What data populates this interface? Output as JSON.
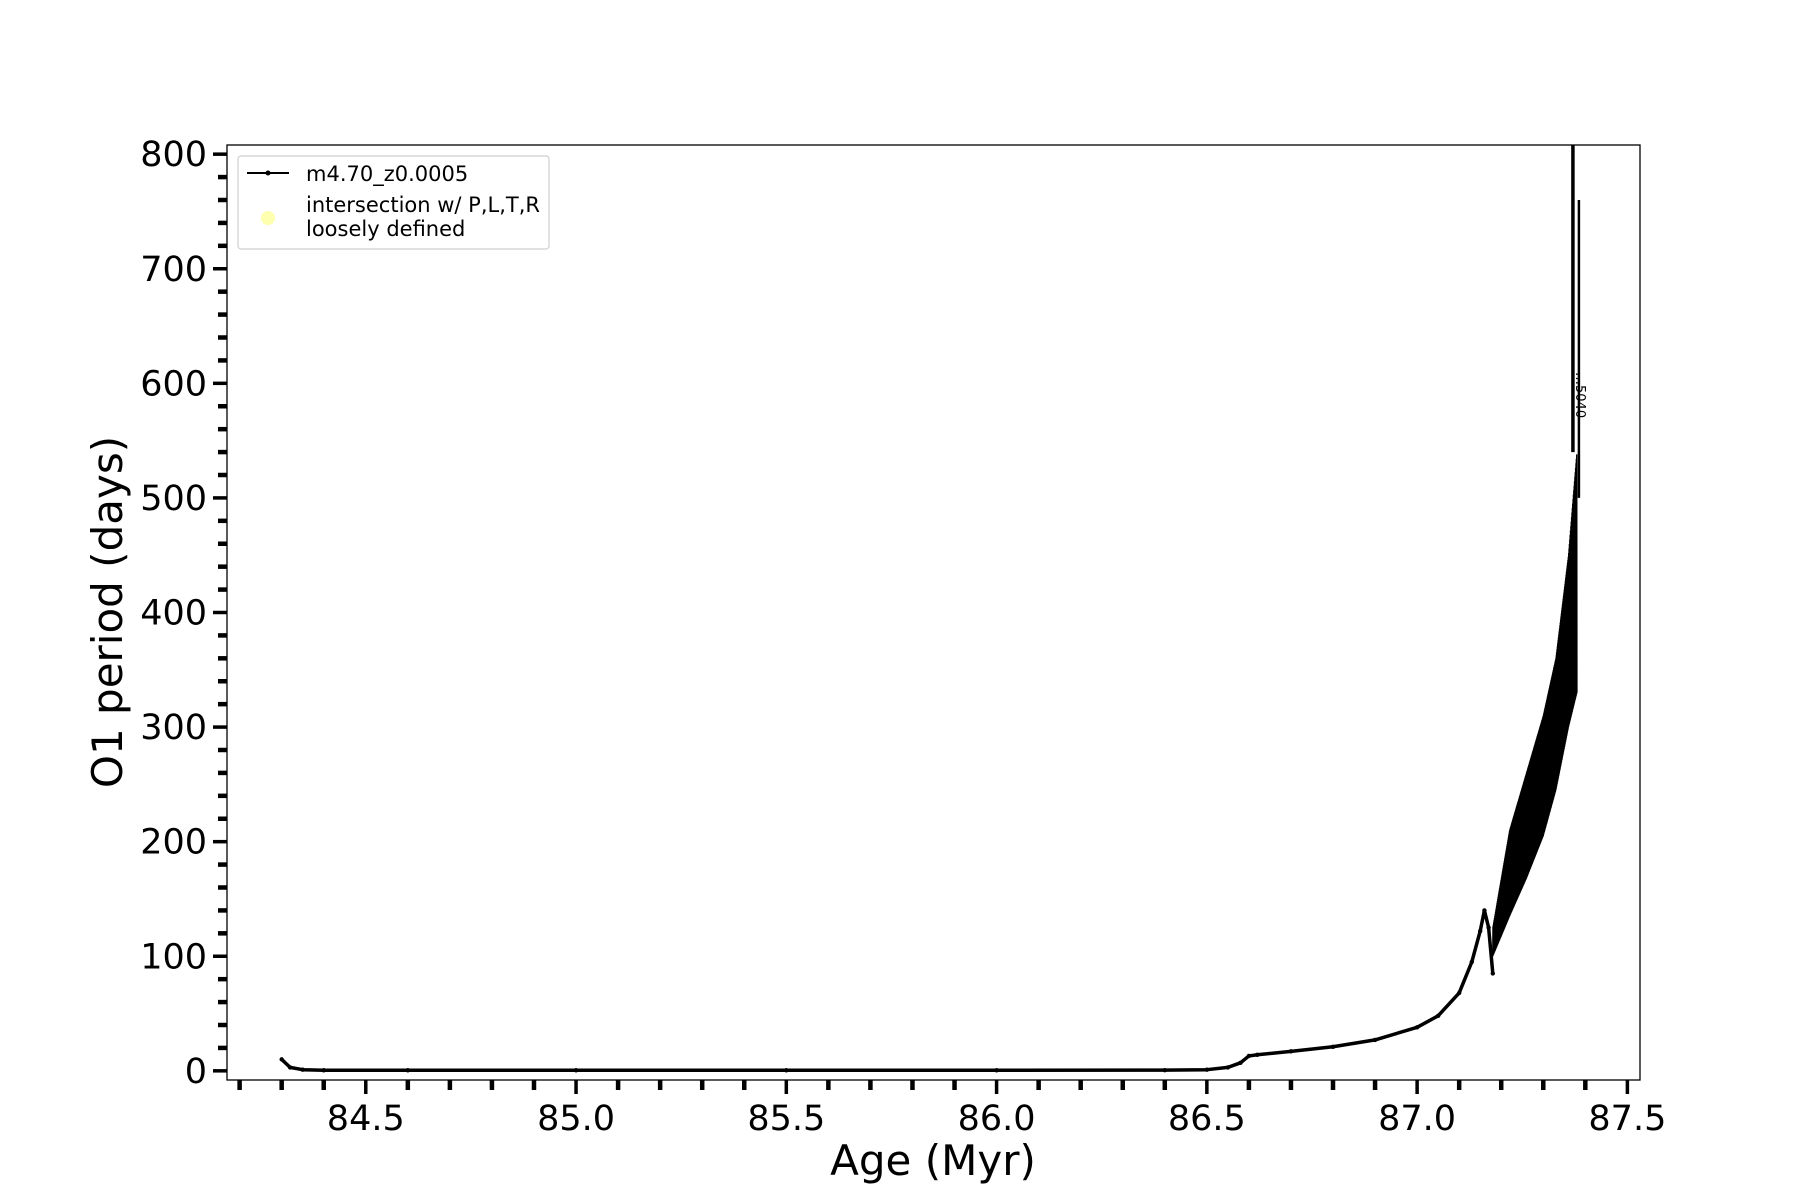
{
  "chart_data": {
    "type": "line",
    "title": "",
    "xlabel": "Age (Myr)",
    "ylabel": "O1 period (days)",
    "xlim": [
      84.17,
      87.53
    ],
    "ylim": [
      -8,
      808
    ],
    "x_ticks": [
      84.5,
      85.0,
      85.5,
      86.0,
      86.5,
      87.0,
      87.5
    ],
    "x_tick_labels": [
      "84.5",
      "85.0",
      "85.5",
      "86.0",
      "86.5",
      "87.0",
      "87.5"
    ],
    "x_minor_step": 0.1,
    "y_ticks": [
      0,
      100,
      200,
      300,
      400,
      500,
      600,
      700,
      800
    ],
    "y_tick_labels": [
      "0",
      "100",
      "200",
      "300",
      "400",
      "500",
      "600",
      "700",
      "800"
    ],
    "y_minor_step": 20,
    "grid": false,
    "legend": {
      "position": "top-left",
      "entries": [
        {
          "label": "m4.70_z0.0005",
          "color": "#000000",
          "marker": "line-dot"
        },
        {
          "label": "intersection w/ P,L,T,R",
          "label_line2": "loosely defined",
          "color": "#ffffb0",
          "marker": "circle"
        }
      ]
    },
    "series": [
      {
        "name": "m4.70_z0.0005",
        "color": "#000000",
        "x": [
          84.3,
          84.32,
          84.35,
          84.4,
          84.6,
          85.0,
          85.5,
          86.0,
          86.4,
          86.5,
          86.55,
          86.58,
          86.6,
          86.62,
          86.7,
          86.8,
          86.9,
          87.0,
          87.05,
          87.1,
          87.13,
          87.15,
          87.16,
          87.17,
          87.18
        ],
        "y": [
          10,
          3,
          1,
          0.5,
          0.5,
          0.5,
          0.5,
          0.5,
          0.6,
          1,
          3,
          7,
          13,
          14,
          17,
          21,
          27,
          38,
          48,
          68,
          95,
          122,
          140,
          125,
          85
        ]
      }
    ],
    "oscillation_band": {
      "x": [
        87.18,
        87.22,
        87.26,
        87.3,
        87.33,
        87.36,
        87.38
      ],
      "y_low": [
        100,
        135,
        168,
        205,
        245,
        300,
        330
      ],
      "y_high": [
        125,
        210,
        260,
        310,
        360,
        450,
        540
      ]
    },
    "spike": {
      "x": 87.38,
      "y_top": 808,
      "y_tail": 760
    },
    "annotations": [
      "…5040"
    ]
  }
}
